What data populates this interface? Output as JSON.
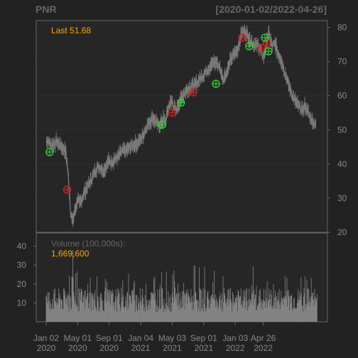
{
  "chart_data": {
    "type": "candlestick",
    "ticker": "PNR",
    "date_range": "[2020-01-02/2022-04-26]",
    "last_label": "Last 51.68",
    "colors": {
      "background": "#222222",
      "plot_border": "#666666",
      "text": "#888888",
      "label_orange": "#ffa500",
      "price_line": "#7a7a7a",
      "buy_marker": "#33cc33",
      "sell_marker": "#cc2222",
      "volume_bar": "#888888"
    },
    "price_panel": {
      "ylim": [
        20,
        82
      ],
      "y_ticks": [
        20,
        30,
        40,
        50,
        60,
        70,
        80
      ],
      "price_path": [
        {
          "t": 0,
          "v": 46.5
        },
        {
          "t": 1,
          "v": 47.0
        },
        {
          "t": 3,
          "v": 45.5
        },
        {
          "t": 6,
          "v": 46.5
        },
        {
          "t": 9,
          "v": 45.0
        },
        {
          "t": 11,
          "v": 44.0
        },
        {
          "t": 12,
          "v": 40.0
        },
        {
          "t": 13,
          "v": 34.0
        },
        {
          "t": 14,
          "v": 26.0
        },
        {
          "t": 15,
          "v": 23.0
        },
        {
          "t": 17,
          "v": 27.5
        },
        {
          "t": 18,
          "v": 30.0
        },
        {
          "t": 19,
          "v": 28.0
        },
        {
          "t": 22,
          "v": 32.0
        },
        {
          "t": 25,
          "v": 34.5
        },
        {
          "t": 28,
          "v": 38.0
        },
        {
          "t": 30,
          "v": 39.5
        },
        {
          "t": 33,
          "v": 38.0
        },
        {
          "t": 35,
          "v": 40.5
        },
        {
          "t": 38,
          "v": 41.0
        },
        {
          "t": 41,
          "v": 42.0
        },
        {
          "t": 43,
          "v": 43.5
        },
        {
          "t": 46,
          "v": 44.0
        },
        {
          "t": 49,
          "v": 45.5
        },
        {
          "t": 52,
          "v": 46.0
        },
        {
          "t": 53,
          "v": 46.5
        },
        {
          "t": 55,
          "v": 48.0
        },
        {
          "t": 57,
          "v": 50.5
        },
        {
          "t": 59,
          "v": 52.5
        },
        {
          "t": 61,
          "v": 53.5
        },
        {
          "t": 63,
          "v": 52.0
        },
        {
          "t": 65,
          "v": 51.5
        },
        {
          "t": 67,
          "v": 53.0
        },
        {
          "t": 68,
          "v": 52.0
        },
        {
          "t": 70,
          "v": 57.0
        },
        {
          "t": 72,
          "v": 58.5
        },
        {
          "t": 74,
          "v": 55.0
        },
        {
          "t": 76,
          "v": 58.0
        },
        {
          "t": 79,
          "v": 61.0
        },
        {
          "t": 82,
          "v": 62.5
        },
        {
          "t": 85,
          "v": 63.0
        },
        {
          "t": 88,
          "v": 65.0
        },
        {
          "t": 91,
          "v": 67.0
        },
        {
          "t": 94,
          "v": 69.0
        },
        {
          "t": 97,
          "v": 70.0
        },
        {
          "t": 99,
          "v": 68.5
        },
        {
          "t": 101,
          "v": 65.0
        },
        {
          "t": 103,
          "v": 66.5
        },
        {
          "t": 105,
          "v": 70.0
        },
        {
          "t": 107,
          "v": 72.0
        },
        {
          "t": 109,
          "v": 73.0
        },
        {
          "t": 111,
          "v": 77.0
        },
        {
          "t": 112,
          "v": 79.0
        },
        {
          "t": 114,
          "v": 78.5
        },
        {
          "t": 116,
          "v": 77.0
        },
        {
          "t": 118,
          "v": 75.5
        },
        {
          "t": 120,
          "v": 74.5
        },
        {
          "t": 121,
          "v": 75.0
        },
        {
          "t": 123,
          "v": 72.5
        },
        {
          "t": 124,
          "v": 71.5
        },
        {
          "t": 125,
          "v": 72.5
        },
        {
          "t": 126,
          "v": 76.0
        },
        {
          "t": 127,
          "v": 78.5
        },
        {
          "t": 128,
          "v": 76.5
        },
        {
          "t": 129,
          "v": 74.5
        },
        {
          "t": 131,
          "v": 75.0
        },
        {
          "t": 132,
          "v": 73.0
        },
        {
          "t": 134,
          "v": 71.0
        },
        {
          "t": 136,
          "v": 67.5
        },
        {
          "t": 138,
          "v": 64.0
        },
        {
          "t": 140,
          "v": 61.0
        },
        {
          "t": 142,
          "v": 58.5
        },
        {
          "t": 144,
          "v": 57.0
        },
        {
          "t": 146,
          "v": 55.5
        },
        {
          "t": 148,
          "v": 57.0
        },
        {
          "t": 149,
          "v": 56.0
        },
        {
          "t": 150,
          "v": 54.5
        },
        {
          "t": 151,
          "v": 53.5
        },
        {
          "t": 153,
          "v": 52.0
        },
        {
          "t": 154,
          "v": 51.68
        }
      ],
      "buy_signals": [
        {
          "t": 2,
          "v": 43.5
        },
        {
          "t": 66,
          "v": 51.5
        },
        {
          "t": 77,
          "v": 58.0
        },
        {
          "t": 97,
          "v": 63.5
        },
        {
          "t": 116,
          "v": 74.5
        },
        {
          "t": 125,
          "v": 77.0
        },
        {
          "t": 127,
          "v": 73.0
        }
      ],
      "sell_signals": [
        {
          "t": 12,
          "v": 32.5
        },
        {
          "t": 72,
          "v": 55.0
        },
        {
          "t": 84,
          "v": 61.0
        },
        {
          "t": 112,
          "v": 77.0
        },
        {
          "t": 123,
          "v": 74.0
        },
        {
          "t": 126,
          "v": 75.5
        }
      ]
    },
    "volume_panel": {
      "label": "Volume (100,000s):",
      "last_value": "1,669,600",
      "ylim": [
        0,
        47
      ],
      "y_ticks": [
        10,
        20,
        30,
        40
      ],
      "typical_range": [
        5,
        18
      ]
    },
    "x_axis": {
      "t_range": [
        0,
        155
      ],
      "ticks": [
        {
          "t": 0,
          "label": "Jan 02",
          "year": "2020"
        },
        {
          "t": 18,
          "label": "May 01",
          "year": "2020"
        },
        {
          "t": 36,
          "label": "Sep 01",
          "year": "2020"
        },
        {
          "t": 54,
          "label": "Jan 04",
          "year": "2021"
        },
        {
          "t": 72,
          "label": "May 03",
          "year": "2021"
        },
        {
          "t": 90,
          "label": "Sep 01",
          "year": "2021"
        },
        {
          "t": 108,
          "label": "Jan 03",
          "year": "2022"
        },
        {
          "t": 124,
          "label": "Apr 26",
          "year": "2022"
        }
      ]
    }
  }
}
